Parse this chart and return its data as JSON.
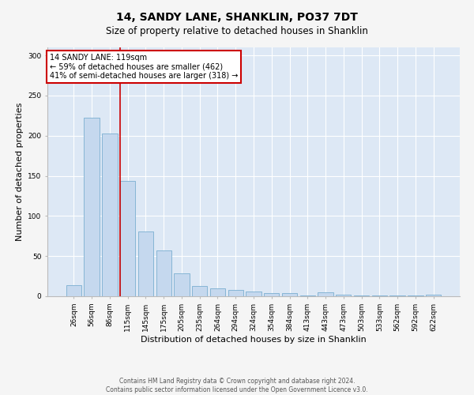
{
  "title": "14, SANDY LANE, SHANKLIN, PO37 7DT",
  "subtitle": "Size of property relative to detached houses in Shanklin",
  "xlabel": "Distribution of detached houses by size in Shanklin",
  "ylabel": "Number of detached properties",
  "categories": [
    "26sqm",
    "56sqm",
    "86sqm",
    "115sqm",
    "145sqm",
    "175sqm",
    "205sqm",
    "235sqm",
    "264sqm",
    "294sqm",
    "324sqm",
    "354sqm",
    "384sqm",
    "413sqm",
    "443sqm",
    "473sqm",
    "503sqm",
    "533sqm",
    "562sqm",
    "592sqm",
    "622sqm"
  ],
  "values": [
    14,
    222,
    203,
    144,
    81,
    57,
    29,
    13,
    10,
    8,
    6,
    4,
    4,
    1,
    5,
    2,
    1,
    1,
    1,
    1,
    2
  ],
  "bar_color": "#c5d8ee",
  "bar_edge_color": "#7aaed0",
  "background_color": "#dde8f5",
  "fig_background_color": "#f5f5f5",
  "property_bar_index": 3,
  "annotation_text_line1": "14 SANDY LANE: 119sqm",
  "annotation_text_line2": "← 59% of detached houses are smaller (462)",
  "annotation_text_line3": "41% of semi-detached houses are larger (318) →",
  "annotation_box_color": "#ffffff",
  "annotation_box_edge_color": "#cc0000",
  "vline_color": "#cc0000",
  "ylim": [
    0,
    310
  ],
  "yticks": [
    0,
    50,
    100,
    150,
    200,
    250,
    300
  ],
  "footer_line1": "Contains HM Land Registry data © Crown copyright and database right 2024.",
  "footer_line2": "Contains public sector information licensed under the Open Government Licence v3.0.",
  "title_fontsize": 10,
  "subtitle_fontsize": 8.5,
  "tick_fontsize": 6.5,
  "ylabel_fontsize": 8,
  "xlabel_fontsize": 8,
  "annotation_fontsize": 7,
  "footer_fontsize": 5.5
}
